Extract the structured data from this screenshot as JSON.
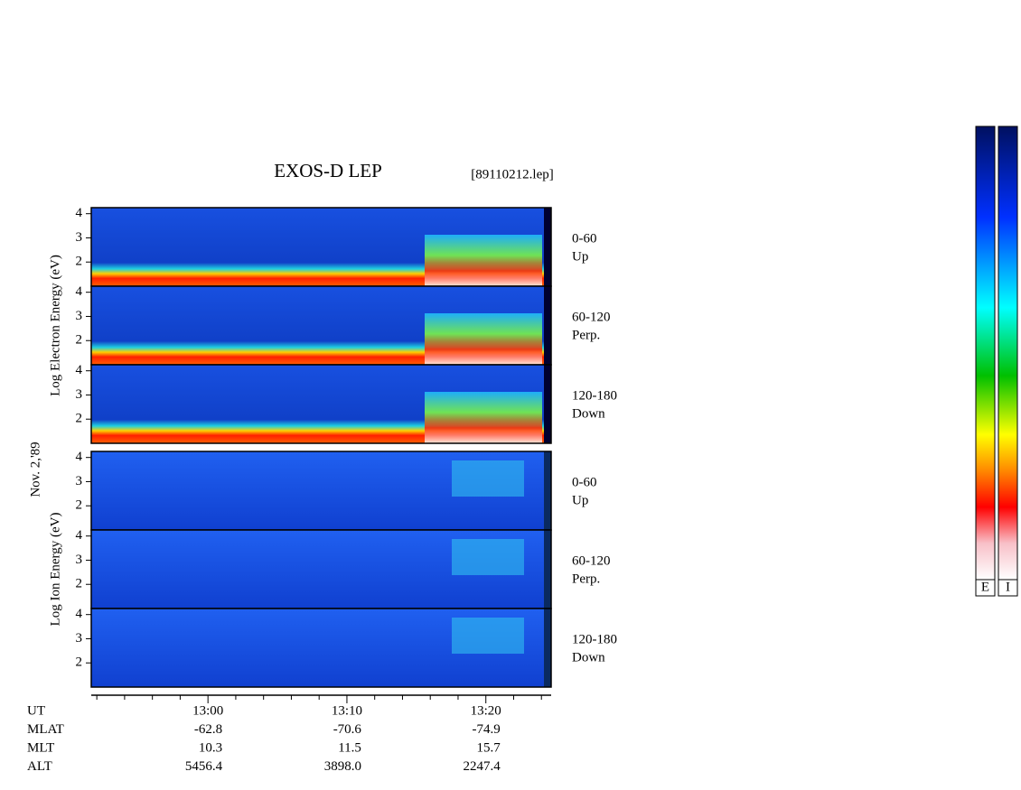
{
  "chart_data": {
    "type": "spectrogram",
    "title": "EXOS-D LEP",
    "file": "[89110212.lep]",
    "date_label": "Nov. 2,'89",
    "groups": [
      {
        "axis_label": "Log Electron Energy (eV)",
        "panels": [
          {
            "side": [
              "0-60",
              "Up"
            ]
          },
          {
            "side": [
              "60-120",
              "Perp."
            ]
          },
          {
            "side": [
              "120-180",
              "Down"
            ]
          }
        ]
      },
      {
        "axis_label": "Log Ion Energy (eV)",
        "panels": [
          {
            "side": [
              "0-60",
              "Up"
            ]
          },
          {
            "side": [
              "60-120",
              "Perp."
            ]
          },
          {
            "side": [
              "120-180",
              "Down"
            ]
          }
        ]
      }
    ],
    "ylim": [
      1,
      4.25
    ],
    "yticks": [
      2,
      3,
      4
    ],
    "xlim": [
      771.6,
      804.7
    ],
    "xticks": [
      {
        "value": 780,
        "label": "13:00"
      },
      {
        "value": 790,
        "label": "13:10"
      },
      {
        "value": 800,
        "label": "13:20"
      }
    ],
    "minor_xticks": [
      772,
      774,
      776,
      778,
      782,
      784,
      786,
      788,
      792,
      794,
      796,
      798,
      802,
      804
    ],
    "ephemeris": [
      {
        "name": "UT",
        "values": []
      },
      {
        "name": "MLAT",
        "values": [
          "-62.8",
          "-70.6",
          "-74.9"
        ]
      },
      {
        "name": "MLT",
        "values": [
          "10.3",
          "11.5",
          "15.7"
        ]
      },
      {
        "name": "ALT",
        "values": [
          "5456.4",
          "3898.0",
          "2247.4"
        ]
      }
    ],
    "colorbar_labels": [
      "E",
      "I"
    ]
  }
}
